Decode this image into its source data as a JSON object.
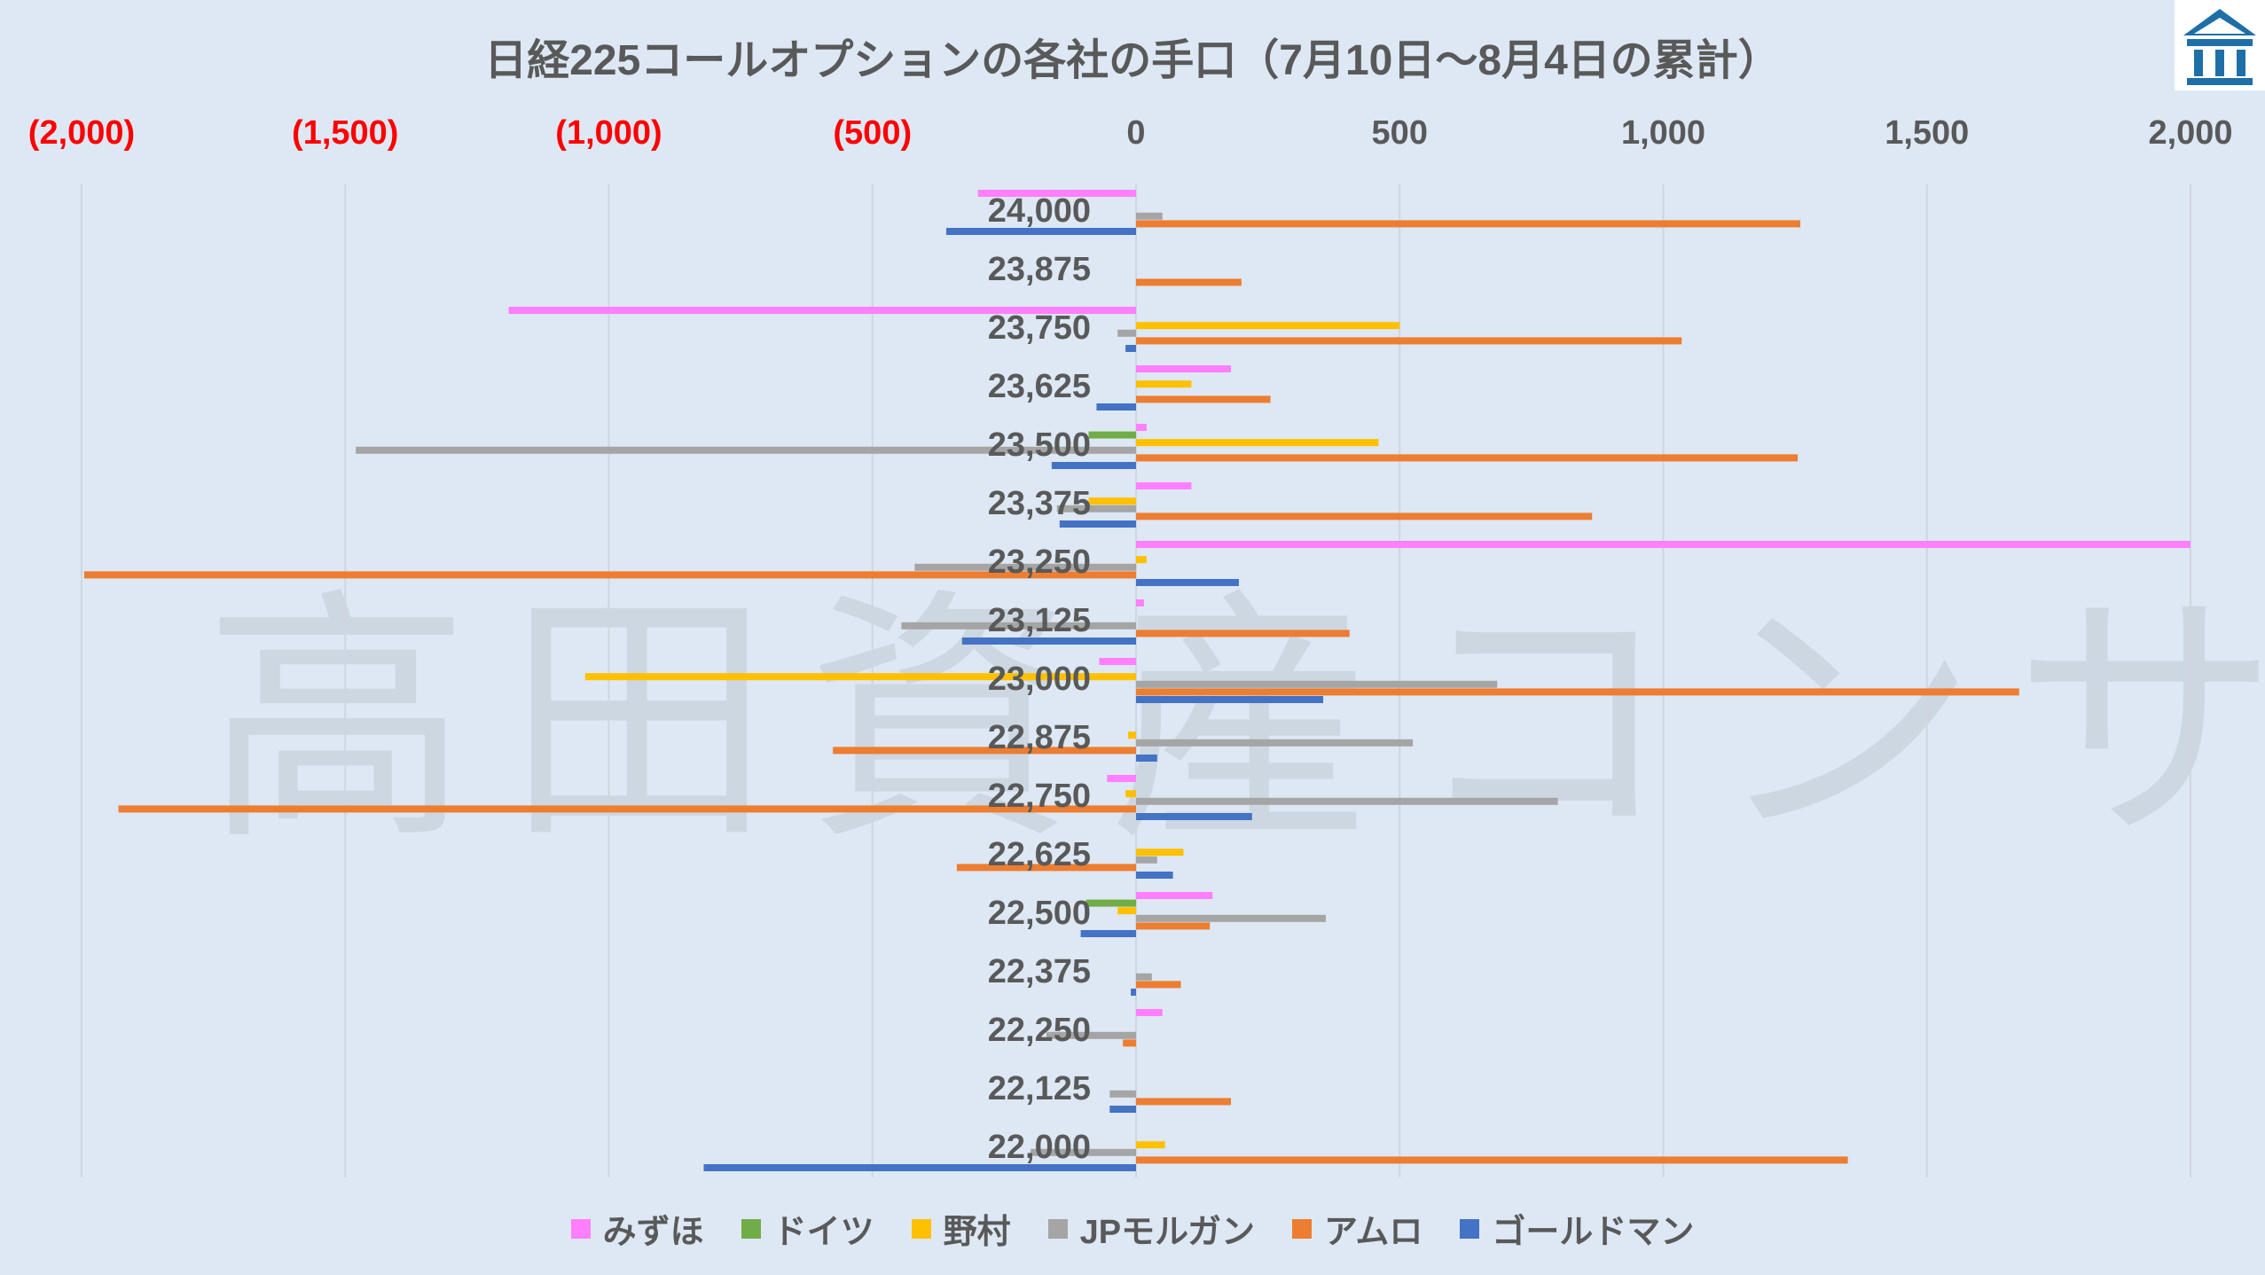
{
  "title": "日経225コールオプションの各社の手口（7月10日～8月4日の累計）",
  "watermark": "高田資産コンサル",
  "logo": {
    "icon": "building-logo",
    "color": "#1e6fa8"
  },
  "chart_data": {
    "type": "bar",
    "orientation": "horizontal",
    "title": "日経225コールオプションの各社の手口（7月10日～8月4日の累計）",
    "xlim": [
      -2000,
      2000
    ],
    "x_ticks": [
      -2000,
      -1500,
      -1000,
      -500,
      0,
      500,
      1000,
      1500,
      2000
    ],
    "x_tick_labels": [
      "(2,000)",
      "(1,500)",
      "(1,000)",
      "(500)",
      "0",
      "500",
      "1,000",
      "1,500",
      "2,000"
    ],
    "x_axis_position": "top",
    "negative_label_color": "#ff0000",
    "gridlines": true,
    "legend_position": "bottom",
    "categories": [
      "24,000",
      "23,875",
      "23,750",
      "23,625",
      "23,500",
      "23,375",
      "23,250",
      "23,125",
      "23,000",
      "22,875",
      "22,750",
      "22,625",
      "22,500",
      "22,375",
      "22,250",
      "22,125",
      "22,000"
    ],
    "series": [
      {
        "name": "みずほ",
        "color": "#ff7fff",
        "values": [
          -300,
          0,
          -1190,
          180,
          20,
          105,
          2000,
          15,
          -70,
          0,
          -55,
          0,
          145,
          0,
          50,
          0,
          0
        ]
      },
      {
        "name": "ドイツ",
        "color": "#70ad47",
        "values": [
          0,
          0,
          0,
          0,
          -90,
          0,
          0,
          0,
          0,
          0,
          0,
          0,
          -95,
          0,
          0,
          0,
          0
        ]
      },
      {
        "name": "野村",
        "color": "#ffc000",
        "values": [
          0,
          0,
          500,
          105,
          460,
          -90,
          20,
          0,
          -1045,
          -15,
          -20,
          90,
          -35,
          0,
          0,
          0,
          55
        ]
      },
      {
        "name": "JPモルガン",
        "color": "#a5a5a5",
        "values": [
          50,
          0,
          -35,
          0,
          -1480,
          -150,
          -420,
          -445,
          685,
          525,
          800,
          40,
          360,
          30,
          -170,
          -50,
          -200
        ]
      },
      {
        "name": "アムロ",
        "color": "#ed7d31",
        "values": [
          1260,
          200,
          1035,
          255,
          1255,
          865,
          -1995,
          405,
          1675,
          -575,
          -1930,
          -340,
          140,
          85,
          -25,
          180,
          1350
        ]
      },
      {
        "name": "ゴールドマン",
        "color": "#4472c4",
        "values": [
          -360,
          0,
          -20,
          -75,
          -160,
          -145,
          195,
          -330,
          355,
          40,
          220,
          70,
          -105,
          -10,
          0,
          -50,
          -820
        ]
      }
    ]
  }
}
